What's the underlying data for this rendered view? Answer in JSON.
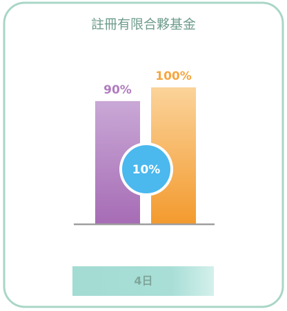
{
  "chart_data": {
    "type": "bar",
    "title": "註冊有限合夥基金",
    "values": [
      90,
      100
    ],
    "value_labels": [
      "90%",
      "100%"
    ],
    "colors": [
      "#b07cbf",
      "#f6a640"
    ],
    "ylim": [
      0,
      100
    ],
    "annotation": "10%",
    "footer": "4日"
  }
}
